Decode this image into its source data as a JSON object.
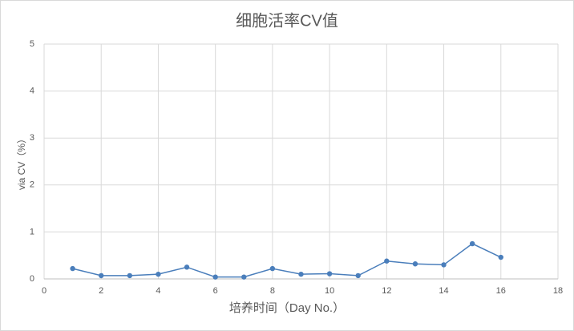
{
  "chart_data": {
    "type": "line",
    "title": "细胞活率CV值",
    "x_label": "培养时间（Day No.）",
    "y_label": "via CV（%）",
    "series": [
      {
        "name": "via CV",
        "color": "#4a7ebb",
        "x": [
          1,
          2,
          3,
          4,
          5,
          6,
          7,
          8,
          9,
          10,
          11,
          12,
          13,
          14,
          15,
          16
        ],
        "values": [
          0.22,
          0.07,
          0.07,
          0.1,
          0.25,
          0.04,
          0.04,
          0.22,
          0.1,
          0.11,
          0.07,
          0.38,
          0.32,
          0.3,
          0.75,
          0.46
        ]
      }
    ],
    "xlim": [
      0,
      18
    ],
    "xticks": [
      0,
      2,
      4,
      6,
      8,
      10,
      12,
      14,
      16,
      18
    ],
    "ylim": [
      0,
      5
    ],
    "yticks": [
      0,
      1,
      2,
      3,
      4,
      5
    ],
    "grid": true
  }
}
